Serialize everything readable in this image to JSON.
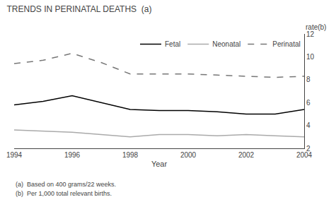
{
  "chart_data": {
    "type": "line",
    "title": "TRENDS IN PERINATAL DEATHS  (a)",
    "xlabel": "Year",
    "ylabel": "rate(b)",
    "annotations": [
      "(a)  Based on 400 grams/22 weeks.",
      "(b)  Per 1,000 total relevant births."
    ],
    "x": [
      1994,
      1995,
      1996,
      1997,
      1998,
      1999,
      2000,
      2001,
      2002,
      2003,
      2004
    ],
    "series": [
      {
        "name": "Fetal",
        "color": "#000000",
        "line_style": "solid",
        "values": [
          5.8,
          6.1,
          6.6,
          6.0,
          5.4,
          5.3,
          5.3,
          5.2,
          5.0,
          5.0,
          5.4
        ]
      },
      {
        "name": "Neonatal",
        "color": "#aaaaaa",
        "line_style": "solid",
        "values": [
          3.6,
          3.5,
          3.4,
          3.2,
          3.0,
          3.2,
          3.2,
          3.1,
          3.2,
          3.1,
          3.0
        ]
      },
      {
        "name": "Perinatal",
        "color": "#777777",
        "line_style": "dashed",
        "values": [
          9.4,
          9.7,
          10.3,
          9.5,
          8.5,
          8.5,
          8.5,
          8.4,
          8.3,
          8.2,
          8.3
        ]
      }
    ],
    "xlim": [
      1994,
      2004
    ],
    "xticks": [
      1994,
      1996,
      1998,
      2000,
      2002,
      2004
    ],
    "ylim": [
      2,
      12
    ],
    "yticks": [
      2,
      4,
      6,
      8,
      10,
      12
    ],
    "grid": false,
    "legend": "upper right"
  }
}
